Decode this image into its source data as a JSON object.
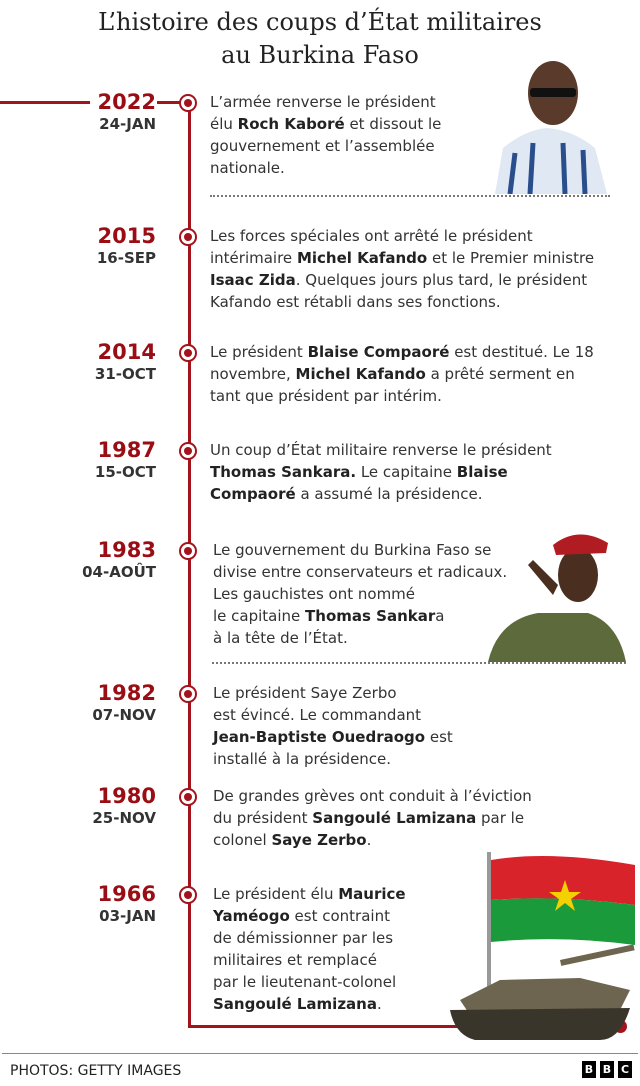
{
  "title_line1": "L’histoire des coups d’État militaires",
  "title_line2": "au Burkina Faso",
  "colors": {
    "accent": "#a4121b",
    "year": "#9a0d14"
  },
  "entries": [
    {
      "year": "2022",
      "date": "24-JAN",
      "segments": [
        [
          "L’armée renverse le président\nélu ",
          false
        ],
        [
          "Roch Kaboré",
          true
        ],
        [
          " et dissout le\ngouvernement et l’assemblée\nnationale.",
          false
        ]
      ]
    },
    {
      "year": "2015",
      "date": "16-SEP",
      "segments": [
        [
          "Les forces spéciales ont arrêté le président\nintérimaire ",
          false
        ],
        [
          "Michel Kafando",
          true
        ],
        [
          " et le Premier ministre\n",
          false
        ],
        [
          "Isaac Zida",
          true
        ],
        [
          ". Quelques jours plus tard, le président\nKafando est rétabli dans ses fonctions.",
          false
        ]
      ]
    },
    {
      "year": "2014",
      "date": "31-OCT",
      "segments": [
        [
          "Le président ",
          false
        ],
        [
          "Blaise Compaoré",
          true
        ],
        [
          " est destitué. Le 18\nnovembre, ",
          false
        ],
        [
          "Michel Kafando",
          true
        ],
        [
          " a prêté serment en\ntant que président par intérim.",
          false
        ]
      ]
    },
    {
      "year": "1987",
      "date": "15-OCT",
      "segments": [
        [
          "Un coup d’État militaire renverse le président\n",
          false
        ],
        [
          "Thomas Sankara.",
          true
        ],
        [
          " Le capitaine ",
          false
        ],
        [
          "Blaise\nCompaoré",
          true
        ],
        [
          " a assumé la présidence.",
          false
        ]
      ]
    },
    {
      "year": "1983",
      "date": "04-AOÛT",
      "segments": [
        [
          "Le gouvernement du Burkina Faso se\ndivise entre conservateurs et radicaux.\nLes gauchistes ont nommé\nle capitaine ",
          false
        ],
        [
          "Thomas Sankar",
          true
        ],
        [
          "a\nà la tête de l’État.",
          false
        ]
      ]
    },
    {
      "year": "1982",
      "date": "07-NOV",
      "segments": [
        [
          "Le président Saye Zerbo\nest évincé. Le commandant\n",
          false
        ],
        [
          "Jean-Baptiste Ouedraogo",
          true
        ],
        [
          " est\ninstallé à la présidence.",
          false
        ]
      ]
    },
    {
      "year": "1980",
      "date": "25-NOV",
      "segments": [
        [
          "De grandes grèves ont conduit à l’éviction\ndu président ",
          false
        ],
        [
          "Sangoulé Lamizana",
          true
        ],
        [
          " par le\ncolonel ",
          false
        ],
        [
          "Saye Zerbo",
          true
        ],
        [
          ".",
          false
        ]
      ]
    },
    {
      "year": "1966",
      "date": "03-JAN",
      "segments": [
        [
          "Le président élu ",
          false
        ],
        [
          "Maurice\nYaméogo",
          true
        ],
        [
          " est contraint\nde démissionner par les\nmilitaires et remplacé\npar le lieutenant-colonel\n",
          false
        ],
        [
          "Sangoulé Lamizana",
          true
        ],
        [
          ".",
          false
        ]
      ]
    }
  ],
  "footer": {
    "credit": "PHOTOS: GETTY IMAGES",
    "logo": [
      "B",
      "B",
      "C"
    ]
  }
}
